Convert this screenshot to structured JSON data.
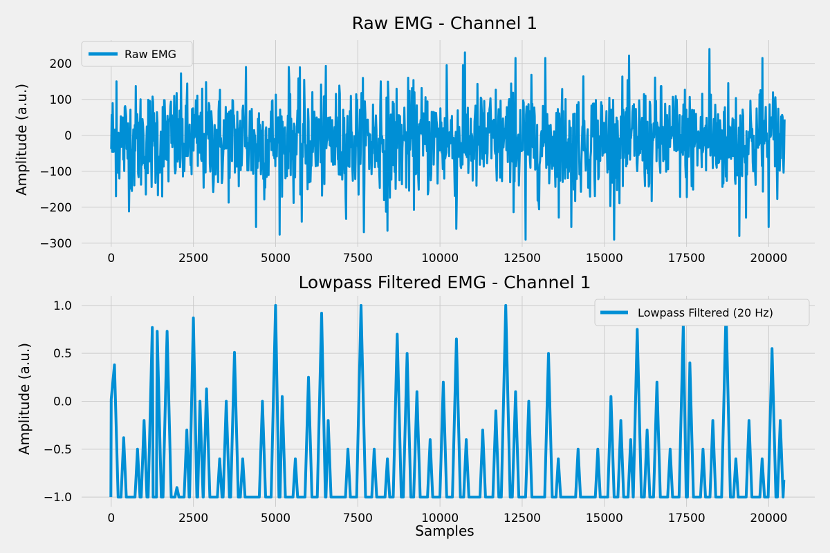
{
  "chart_data": [
    {
      "type": "line",
      "title": "Raw EMG - Channel 1",
      "xlabel": "",
      "ylabel": "Amplitude (a.u.)",
      "xlim": [
        -900,
        21400
      ],
      "ylim": [
        -310,
        265
      ],
      "xticks": [
        0,
        2500,
        5000,
        7500,
        10000,
        12500,
        15000,
        17500,
        20000
      ],
      "yticks": [
        -300,
        -200,
        -100,
        0,
        100,
        200
      ],
      "ytick_labels": [
        "−300",
        "−200",
        "−100",
        "0",
        "100",
        "200"
      ],
      "legend": "top-left",
      "grid": true,
      "series": [
        {
          "name": "Raw EMG",
          "color": "#008fd5",
          "x_range": [
            0,
            20480
          ],
          "approx_mean": -15,
          "approx_std": 75,
          "approx_min": -290,
          "approx_max": 240,
          "peaks": [
            [
              160,
              150
            ],
            [
              4100,
              190
            ],
            [
              5400,
              190
            ],
            [
              8200,
              150
            ],
            [
              10200,
              195
            ],
            [
              10700,
              195
            ],
            [
              12300,
              215
            ],
            [
              13200,
              215
            ],
            [
              18200,
              240
            ],
            [
              19800,
              215
            ]
          ],
          "troughs": [
            [
              4400,
              -255
            ],
            [
              5800,
              -240
            ],
            [
              8400,
              -265
            ],
            [
              10500,
              -260
            ],
            [
              12600,
              -290
            ],
            [
              14000,
              -255
            ],
            [
              19100,
              -280
            ],
            [
              20000,
              -255
            ]
          ]
        }
      ]
    },
    {
      "type": "line",
      "title": "Lowpass Filtered EMG - Channel 1",
      "xlabel": "Samples",
      "ylabel": "Amplitude (a.u.)",
      "xlim": [
        -900,
        21400
      ],
      "ylim": [
        -1.1,
        1.1
      ],
      "xticks": [
        0,
        2500,
        5000,
        7500,
        10000,
        12500,
        15000,
        17500,
        20000
      ],
      "yticks": [
        -1.0,
        -0.5,
        0.0,
        0.5,
        1.0
      ],
      "ytick_labels": [
        "−1.0",
        "−0.5",
        "0.0",
        "0.5",
        "1.0"
      ],
      "legend": "top-right",
      "grid": true,
      "series": [
        {
          "name": "Lowpass Filtered (20 Hz)",
          "color": "#008fd5",
          "baseline": -1.0,
          "start": [
            0,
            0.02
          ],
          "peaks": [
            [
              100,
              0.38
            ],
            [
              380,
              -0.38
            ],
            [
              800,
              -0.5
            ],
            [
              1000,
              -0.2
            ],
            [
              1250,
              0.77
            ],
            [
              1400,
              0.73
            ],
            [
              1700,
              0.73
            ],
            [
              2000,
              -0.9
            ],
            [
              2300,
              -0.3
            ],
            [
              2500,
              0.87
            ],
            [
              2700,
              0.0
            ],
            [
              2900,
              0.13
            ],
            [
              3300,
              -0.6
            ],
            [
              3500,
              0.0
            ],
            [
              3750,
              0.51
            ],
            [
              4000,
              -0.6
            ],
            [
              4600,
              0.0
            ],
            [
              5000,
              1.0
            ],
            [
              5200,
              0.05
            ],
            [
              5600,
              -0.6
            ],
            [
              6000,
              0.25
            ],
            [
              6400,
              0.92
            ],
            [
              6600,
              -0.2
            ],
            [
              7200,
              -0.5
            ],
            [
              7600,
              1.0
            ],
            [
              8000,
              -0.5
            ],
            [
              8400,
              -0.6
            ],
            [
              8700,
              0.7
            ],
            [
              9000,
              0.5
            ],
            [
              9300,
              0.1
            ],
            [
              9700,
              -0.4
            ],
            [
              10100,
              0.2
            ],
            [
              10500,
              0.65
            ],
            [
              10800,
              -0.4
            ],
            [
              11300,
              -0.3
            ],
            [
              11700,
              -0.1
            ],
            [
              12000,
              1.0
            ],
            [
              12300,
              0.1
            ],
            [
              12700,
              0.0
            ],
            [
              13300,
              0.5
            ],
            [
              13600,
              -0.6
            ],
            [
              14200,
              -0.5
            ],
            [
              14800,
              -0.5
            ],
            [
              15200,
              0.05
            ],
            [
              15500,
              -0.2
            ],
            [
              15800,
              -0.4
            ],
            [
              16000,
              0.75
            ],
            [
              16300,
              -0.3
            ],
            [
              16600,
              0.2
            ],
            [
              17000,
              -0.5
            ],
            [
              17400,
              0.8
            ],
            [
              17600,
              0.4
            ],
            [
              18000,
              -0.5
            ],
            [
              18300,
              -0.2
            ],
            [
              18700,
              0.96
            ],
            [
              19000,
              -0.6
            ],
            [
              19400,
              -0.2
            ],
            [
              19800,
              -0.6
            ],
            [
              20100,
              0.55
            ],
            [
              20350,
              -0.2
            ]
          ],
          "end": [
            20460,
            -0.82
          ]
        }
      ]
    }
  ]
}
